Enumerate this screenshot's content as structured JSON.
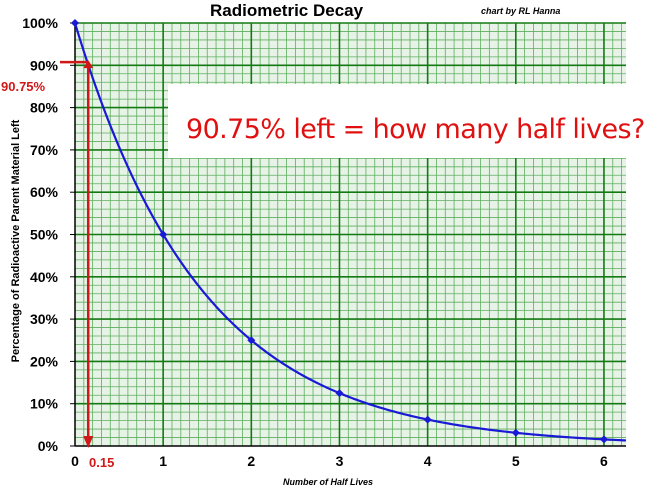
{
  "chart_data": {
    "type": "line",
    "title": "Radiometric Decay",
    "credit": "chart by RL Hanna",
    "xlabel": "Number of Half Lives",
    "ylabel": "Percentage of Radioactive Parent Material Left",
    "xlim": [
      0,
      6.25
    ],
    "ylim": [
      0,
      100
    ],
    "x_ticks": [
      "0",
      "1",
      "2",
      "3",
      "4",
      "5",
      "6"
    ],
    "y_ticks": [
      "0%",
      "10%",
      "20%",
      "30%",
      "40%",
      "50%",
      "60%",
      "70%",
      "80%",
      "90%",
      "100%"
    ],
    "grid": true,
    "series": [
      {
        "color": "#1a1ad6",
        "x": [
          0,
          1,
          2,
          3,
          4,
          5,
          6
        ],
        "y": [
          100,
          50,
          25,
          12.5,
          6.25,
          3.125,
          1.5625
        ]
      }
    ],
    "annotations": {
      "question": "90.75%  left = how many half lives?",
      "marker_y_label": "90.75%",
      "marker_y_value": 90.75,
      "marker_x_label": "0.15",
      "marker_x_value": 0.15,
      "marker_color": "#d01818"
    }
  }
}
